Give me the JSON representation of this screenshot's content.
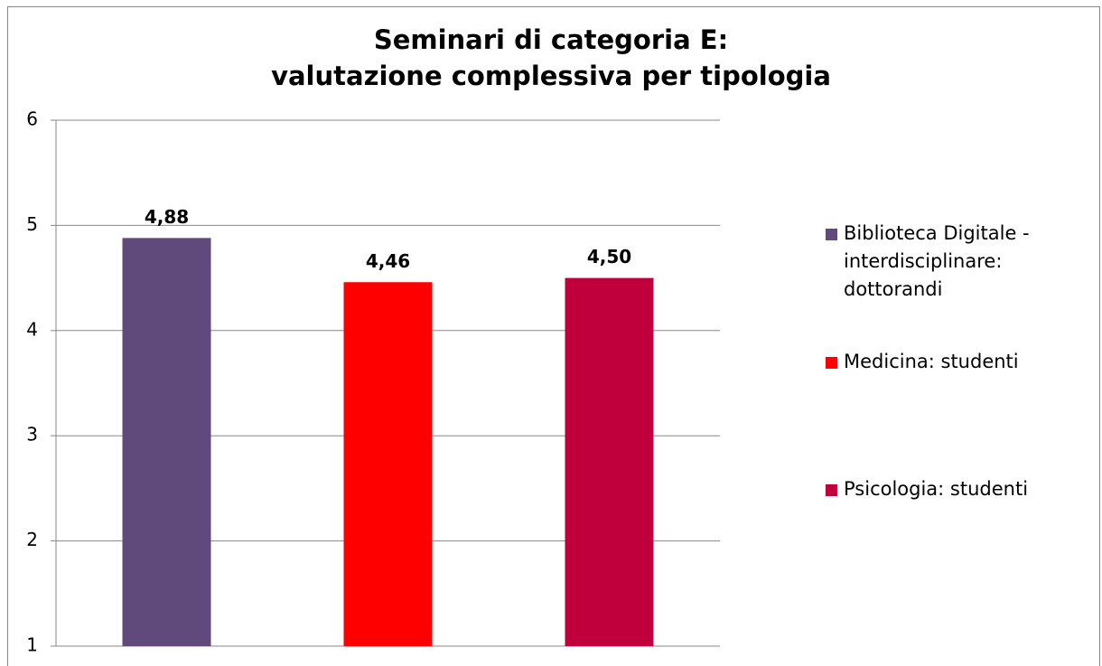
{
  "chart_data": {
    "type": "bar",
    "title": "Seminari di categoria E:\nvalutazione complessiva per tipologia",
    "categories": [
      null
    ],
    "series": [
      {
        "name": "Biblioteca Digitale - interdisciplinare: dottorandi",
        "color": "#604a7b",
        "values": [
          4.88
        ],
        "value_labels": [
          "4,88"
        ]
      },
      {
        "name": "Medicina: studenti",
        "color": "#ff0000",
        "values": [
          4.46
        ],
        "value_labels": [
          "4,46"
        ]
      },
      {
        "name": "Psicologia: studenti",
        "color": "#c0003c",
        "values": [
          4.5
        ],
        "value_labels": [
          "4,50"
        ]
      }
    ],
    "ylim": [
      1,
      6
    ],
    "yticks": [
      1,
      2,
      3,
      4,
      5,
      6
    ],
    "grid": true,
    "legend": "right"
  }
}
